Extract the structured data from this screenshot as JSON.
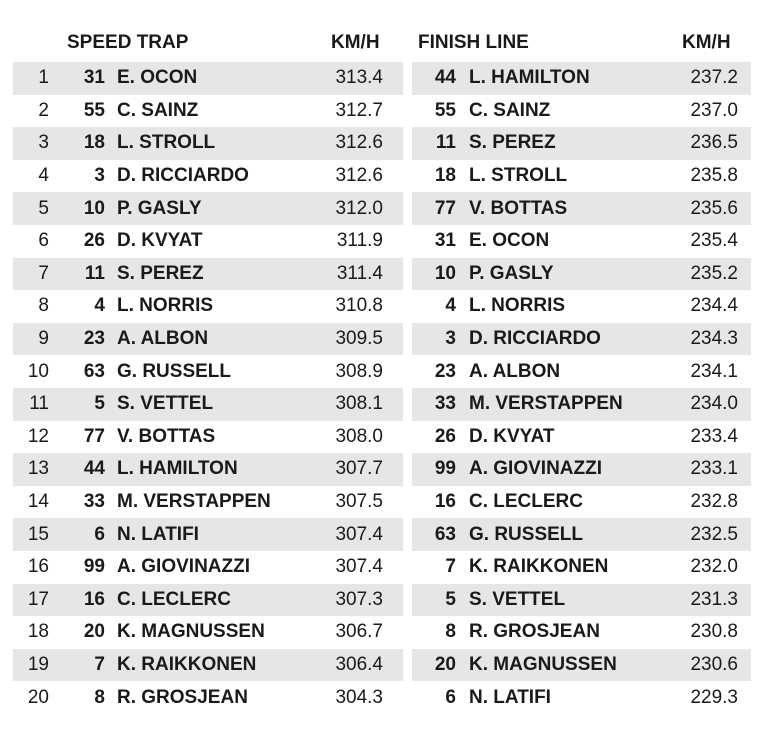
{
  "speed_trap": {
    "header": "SPEED TRAP",
    "unit": "KM/H",
    "rows": [
      {
        "pos": "1",
        "num": "31",
        "name": "E. OCON",
        "speed": "313.4"
      },
      {
        "pos": "2",
        "num": "55",
        "name": "C. SAINZ",
        "speed": "312.7"
      },
      {
        "pos": "3",
        "num": "18",
        "name": "L. STROLL",
        "speed": "312.6"
      },
      {
        "pos": "4",
        "num": "3",
        "name": "D. RICCIARDO",
        "speed": "312.6"
      },
      {
        "pos": "5",
        "num": "10",
        "name": "P. GASLY",
        "speed": "312.0"
      },
      {
        "pos": "6",
        "num": "26",
        "name": "D. KVYAT",
        "speed": "311.9"
      },
      {
        "pos": "7",
        "num": "11",
        "name": "S. PEREZ",
        "speed": "311.4"
      },
      {
        "pos": "8",
        "num": "4",
        "name": "L. NORRIS",
        "speed": "310.8"
      },
      {
        "pos": "9",
        "num": "23",
        "name": "A. ALBON",
        "speed": "309.5"
      },
      {
        "pos": "10",
        "num": "63",
        "name": "G. RUSSELL",
        "speed": "308.9"
      },
      {
        "pos": "11",
        "num": "5",
        "name": "S. VETTEL",
        "speed": "308.1"
      },
      {
        "pos": "12",
        "num": "77",
        "name": "V. BOTTAS",
        "speed": "308.0"
      },
      {
        "pos": "13",
        "num": "44",
        "name": "L. HAMILTON",
        "speed": "307.7"
      },
      {
        "pos": "14",
        "num": "33",
        "name": "M. VERSTAPPEN",
        "speed": "307.5"
      },
      {
        "pos": "15",
        "num": "6",
        "name": "N. LATIFI",
        "speed": "307.4"
      },
      {
        "pos": "16",
        "num": "99",
        "name": "A. GIOVINAZZI",
        "speed": "307.4"
      },
      {
        "pos": "17",
        "num": "16",
        "name": "C. LECLERC",
        "speed": "307.3"
      },
      {
        "pos": "18",
        "num": "20",
        "name": "K. MAGNUSSEN",
        "speed": "306.7"
      },
      {
        "pos": "19",
        "num": "7",
        "name": "K. RAIKKONEN",
        "speed": "306.4"
      },
      {
        "pos": "20",
        "num": "8",
        "name": "R. GROSJEAN",
        "speed": "304.3"
      }
    ]
  },
  "finish_line": {
    "header": "FINISH LINE",
    "unit": "KM/H",
    "rows": [
      {
        "num": "44",
        "name": "L. HAMILTON",
        "speed": "237.2"
      },
      {
        "num": "55",
        "name": "C. SAINZ",
        "speed": "237.0"
      },
      {
        "num": "11",
        "name": "S. PEREZ",
        "speed": "236.5"
      },
      {
        "num": "18",
        "name": "L. STROLL",
        "speed": "235.8"
      },
      {
        "num": "77",
        "name": "V. BOTTAS",
        "speed": "235.6"
      },
      {
        "num": "31",
        "name": "E. OCON",
        "speed": "235.4"
      },
      {
        "num": "10",
        "name": "P. GASLY",
        "speed": "235.2"
      },
      {
        "num": "4",
        "name": "L. NORRIS",
        "speed": "234.4"
      },
      {
        "num": "3",
        "name": "D. RICCIARDO",
        "speed": "234.3"
      },
      {
        "num": "23",
        "name": "A. ALBON",
        "speed": "234.1"
      },
      {
        "num": "33",
        "name": "M. VERSTAPPEN",
        "speed": "234.0"
      },
      {
        "num": "26",
        "name": "D. KVYAT",
        "speed": "233.4"
      },
      {
        "num": "99",
        "name": "A. GIOVINAZZI",
        "speed": "233.1"
      },
      {
        "num": "16",
        "name": "C. LECLERC",
        "speed": "232.8"
      },
      {
        "num": "63",
        "name": "G. RUSSELL",
        "speed": "232.5"
      },
      {
        "num": "7",
        "name": "K. RAIKKONEN",
        "speed": "232.0"
      },
      {
        "num": "5",
        "name": "S. VETTEL",
        "speed": "231.3"
      },
      {
        "num": "8",
        "name": "R. GROSJEAN",
        "speed": "230.8"
      },
      {
        "num": "20",
        "name": "K. MAGNUSSEN",
        "speed": "230.6"
      },
      {
        "num": "6",
        "name": "N. LATIFI",
        "speed": "229.3"
      }
    ]
  },
  "colors": {
    "row_shade": "#e6e6e6",
    "text": "#1a1a1a",
    "background": "#ffffff"
  }
}
